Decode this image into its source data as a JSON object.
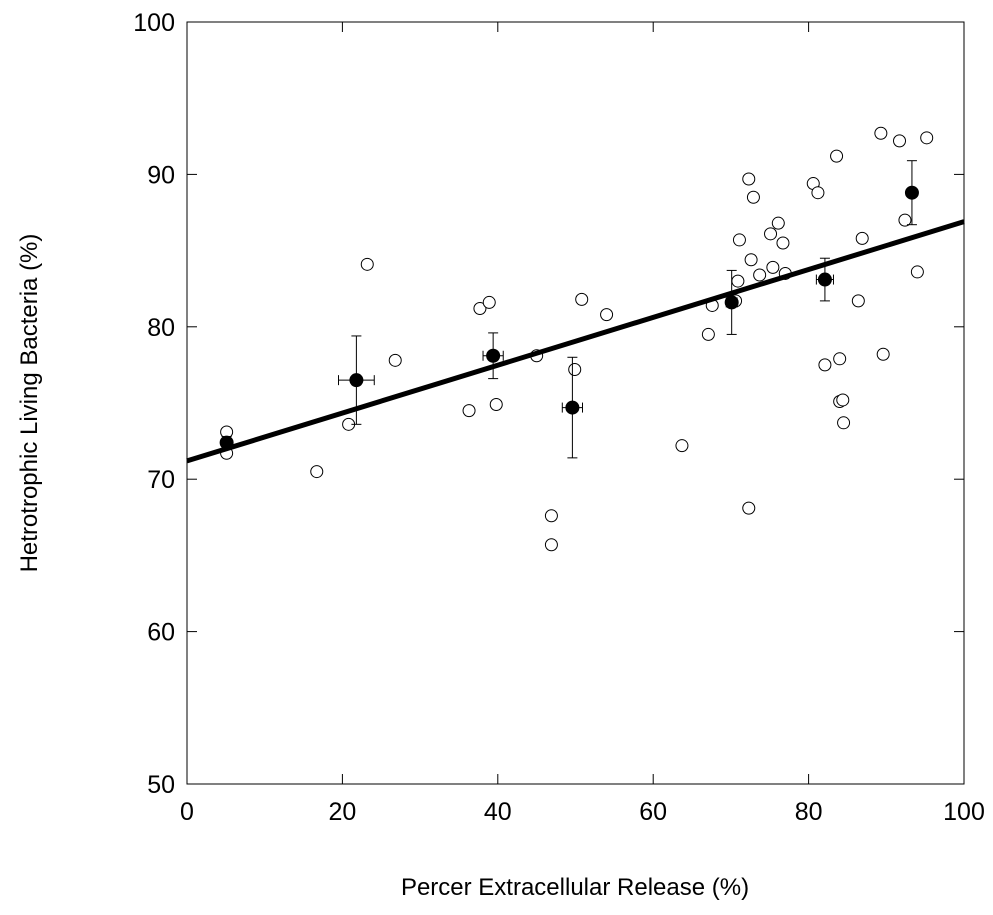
{
  "chart_data": {
    "type": "scatter",
    "xlabel": "Percer Extracellular Release (%)",
    "ylabel": "Hetrotrophic Living Bacteria (%)",
    "xlim": [
      0,
      100
    ],
    "ylim": [
      50,
      100
    ],
    "x_ticks": [
      "0",
      "20",
      "40",
      "60",
      "80",
      "100"
    ],
    "y_ticks": [
      "50",
      "60",
      "70",
      "80",
      "90",
      "100"
    ],
    "grid": false,
    "legend": "none",
    "series": [
      {
        "marker": "open-circle",
        "points": [
          [
            5.1,
            73.1
          ],
          [
            5.1,
            71.7
          ],
          [
            16.7,
            70.5
          ],
          [
            20.8,
            73.6
          ],
          [
            23.2,
            84.1
          ],
          [
            26.8,
            77.8
          ],
          [
            36.3,
            74.5
          ],
          [
            37.7,
            81.2
          ],
          [
            38.9,
            81.6
          ],
          [
            39.8,
            74.9
          ],
          [
            45.0,
            78.1
          ],
          [
            46.9,
            67.6
          ],
          [
            46.9,
            65.7
          ],
          [
            49.9,
            77.2
          ],
          [
            50.8,
            81.8
          ],
          [
            54.0,
            80.8
          ],
          [
            63.7,
            72.2
          ],
          [
            67.1,
            79.5
          ],
          [
            67.6,
            81.4
          ],
          [
            70.6,
            81.7
          ],
          [
            70.9,
            83.0
          ],
          [
            71.1,
            85.7
          ],
          [
            72.3,
            89.7
          ],
          [
            72.3,
            68.1
          ],
          [
            72.6,
            84.4
          ],
          [
            72.9,
            88.5
          ],
          [
            73.7,
            83.4
          ],
          [
            75.1,
            86.1
          ],
          [
            75.4,
            83.9
          ],
          [
            76.1,
            86.8
          ],
          [
            76.7,
            85.5
          ],
          [
            77.0,
            83.5
          ],
          [
            80.6,
            89.4
          ],
          [
            81.2,
            88.8
          ],
          [
            82.1,
            77.5
          ],
          [
            83.6,
            91.2
          ],
          [
            84.0,
            77.9
          ],
          [
            84.0,
            75.1
          ],
          [
            84.4,
            75.2
          ],
          [
            84.5,
            73.7
          ],
          [
            86.4,
            81.7
          ],
          [
            86.9,
            85.8
          ],
          [
            89.3,
            92.7
          ],
          [
            89.6,
            78.2
          ],
          [
            91.7,
            92.2
          ],
          [
            92.4,
            87.0
          ],
          [
            94.0,
            83.6
          ],
          [
            95.2,
            92.4
          ]
        ]
      },
      {
        "marker": "filled-circle",
        "points": [
          {
            "x": 5.1,
            "y": 72.4,
            "xerr": 0.0,
            "yerr": 0.4
          },
          {
            "x": 21.8,
            "y": 76.5,
            "xerr": 2.3,
            "yerr": 2.9
          },
          {
            "x": 39.4,
            "y": 78.1,
            "xerr": 1.3,
            "yerr": 1.5
          },
          {
            "x": 49.6,
            "y": 74.7,
            "xerr": 1.3,
            "yerr": 3.3
          },
          {
            "x": 70.1,
            "y": 81.6,
            "xerr": 0.7,
            "yerr": 2.1
          },
          {
            "x": 82.1,
            "y": 83.1,
            "xerr": 1.1,
            "yerr": 1.4
          },
          {
            "x": 93.3,
            "y": 88.8,
            "xerr": 0.5,
            "yerr": 2.1
          }
        ]
      }
    ],
    "fit_line": {
      "x": [
        0,
        100
      ],
      "y": [
        71.2,
        86.9
      ]
    }
  }
}
